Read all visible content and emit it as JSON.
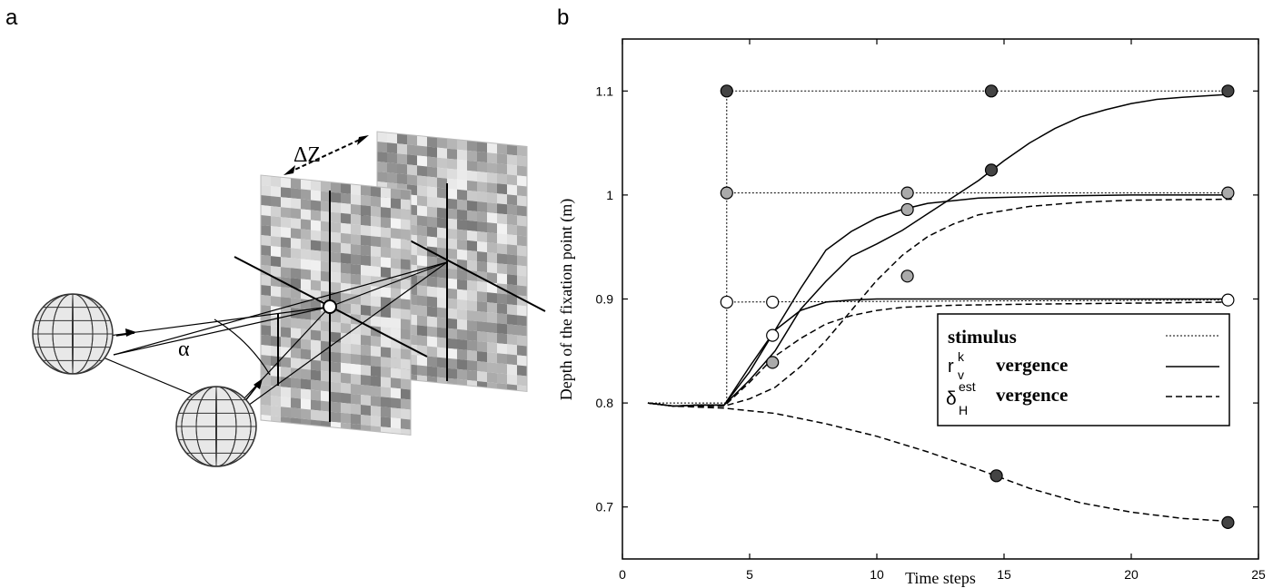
{
  "panels": {
    "a_label": "a",
    "b_label": "b"
  },
  "diagram": {
    "delta_z_label": "ΔZ",
    "alpha_label": "α",
    "colors": {
      "eye_fill": "#e8e8e8",
      "eye_stroke": "#333333",
      "line": "#000000"
    }
  },
  "chart_data": {
    "type": "line",
    "xlabel": "Time steps",
    "ylabel": "Depth of the fixation point (m)",
    "xlim": [
      0,
      25
    ],
    "ylim": [
      0.65,
      1.15
    ],
    "xticks": [
      "0",
      "5",
      "10",
      "15",
      "20",
      "25"
    ],
    "yticks": [
      "0.7",
      "0.8",
      "0.9",
      "1",
      "1.1"
    ],
    "grid": false,
    "legend_position": "right",
    "legend": [
      {
        "symbol": "",
        "label": "stimulus",
        "style": "dotted"
      },
      {
        "symbol": "r",
        "sup": "k",
        "sub": "v",
        "label": "vergence",
        "style": "solid"
      },
      {
        "symbol": "δ",
        "sup": "est",
        "sub": "H",
        "label": "vergence",
        "style": "dashed"
      }
    ],
    "series": [
      {
        "style": "dotted",
        "points": [
          [
            1,
            0.8
          ],
          [
            4.1,
            0.8
          ],
          [
            4.1,
            1.1
          ],
          [
            23.8,
            1.1
          ]
        ]
      },
      {
        "style": "dotted",
        "points": [
          [
            4.1,
            1.002
          ],
          [
            23.8,
            1.002
          ]
        ]
      },
      {
        "style": "dotted",
        "points": [
          [
            4.1,
            0.897
          ],
          [
            23.8,
            0.899
          ]
        ]
      },
      {
        "style": "solid",
        "points": [
          [
            1,
            0.8
          ],
          [
            2,
            0.797
          ],
          [
            3,
            0.798
          ],
          [
            4,
            0.798
          ],
          [
            5,
            0.83
          ],
          [
            6,
            0.87
          ],
          [
            7,
            0.91
          ],
          [
            8,
            0.947
          ],
          [
            9,
            0.965
          ],
          [
            10,
            0.978
          ],
          [
            11,
            0.986
          ],
          [
            12,
            0.992
          ],
          [
            14,
            0.997
          ],
          [
            17,
            0.999
          ],
          [
            20,
            1.0
          ],
          [
            24,
            1.0
          ]
        ]
      },
      {
        "style": "solid",
        "points": [
          [
            1,
            0.8
          ],
          [
            2,
            0.797
          ],
          [
            3,
            0.798
          ],
          [
            4,
            0.798
          ],
          [
            5,
            0.822
          ],
          [
            6,
            0.85
          ],
          [
            7,
            0.89
          ],
          [
            8,
            0.917
          ],
          [
            9,
            0.941
          ],
          [
            10,
            0.953
          ],
          [
            11,
            0.966
          ],
          [
            12,
            0.982
          ],
          [
            13,
            0.998
          ],
          [
            14,
            1.014
          ],
          [
            15,
            1.033
          ],
          [
            16,
            1.05
          ],
          [
            17,
            1.064
          ],
          [
            18,
            1.075
          ],
          [
            19,
            1.082
          ],
          [
            20,
            1.088
          ],
          [
            21,
            1.092
          ],
          [
            22,
            1.094
          ],
          [
            24,
            1.097
          ]
        ]
      },
      {
        "style": "solid",
        "points": [
          [
            1,
            0.8
          ],
          [
            2,
            0.797
          ],
          [
            3,
            0.798
          ],
          [
            4,
            0.798
          ],
          [
            5,
            0.835
          ],
          [
            6,
            0.87
          ],
          [
            7,
            0.889
          ],
          [
            8,
            0.897
          ],
          [
            9,
            0.899
          ],
          [
            10,
            0.9
          ],
          [
            24,
            0.9
          ]
        ]
      },
      {
        "style": "dashed",
        "points": [
          [
            1,
            0.8
          ],
          [
            2,
            0.797
          ],
          [
            3,
            0.797
          ],
          [
            4,
            0.797
          ],
          [
            5,
            0.804
          ],
          [
            6,
            0.815
          ],
          [
            7,
            0.835
          ],
          [
            8,
            0.86
          ],
          [
            9,
            0.889
          ],
          [
            10,
            0.918
          ],
          [
            11,
            0.942
          ],
          [
            12,
            0.96
          ],
          [
            13,
            0.972
          ],
          [
            14,
            0.981
          ],
          [
            16,
            0.989
          ],
          [
            18,
            0.993
          ],
          [
            20,
            0.995
          ],
          [
            24,
            0.996
          ]
        ]
      },
      {
        "style": "dashed",
        "points": [
          [
            1,
            0.8
          ],
          [
            2,
            0.797
          ],
          [
            3,
            0.797
          ],
          [
            4,
            0.797
          ],
          [
            5,
            0.82
          ],
          [
            6,
            0.845
          ],
          [
            7,
            0.862
          ],
          [
            8,
            0.876
          ],
          [
            9,
            0.884
          ],
          [
            10,
            0.889
          ],
          [
            11,
            0.892
          ],
          [
            13,
            0.894
          ],
          [
            16,
            0.895
          ],
          [
            20,
            0.896
          ],
          [
            24,
            0.897
          ]
        ]
      },
      {
        "style": "dashed",
        "points": [
          [
            1,
            0.8
          ],
          [
            2,
            0.797
          ],
          [
            3,
            0.796
          ],
          [
            4,
            0.795
          ],
          [
            6,
            0.79
          ],
          [
            8,
            0.78
          ],
          [
            10,
            0.768
          ],
          [
            12,
            0.753
          ],
          [
            14,
            0.736
          ],
          [
            16,
            0.718
          ],
          [
            18,
            0.704
          ],
          [
            20,
            0.695
          ],
          [
            22,
            0.689
          ],
          [
            24,
            0.686
          ]
        ]
      }
    ],
    "markers": [
      {
        "x": 4.1,
        "y": 1.1,
        "color": "#444444"
      },
      {
        "x": 14.5,
        "y": 1.1,
        "color": "#444444"
      },
      {
        "x": 23.8,
        "y": 1.1,
        "color": "#444444"
      },
      {
        "x": 14.5,
        "y": 1.024,
        "color": "#444444"
      },
      {
        "x": 14.7,
        "y": 0.73,
        "color": "#444444"
      },
      {
        "x": 23.8,
        "y": 0.685,
        "color": "#444444"
      },
      {
        "x": 4.1,
        "y": 1.002,
        "color": "#aaaaaa"
      },
      {
        "x": 11.2,
        "y": 1.002,
        "color": "#aaaaaa"
      },
      {
        "x": 23.8,
        "y": 1.002,
        "color": "#aaaaaa"
      },
      {
        "x": 11.2,
        "y": 0.986,
        "color": "#aaaaaa"
      },
      {
        "x": 11.2,
        "y": 0.922,
        "color": "#aaaaaa"
      },
      {
        "x": 5.9,
        "y": 0.839,
        "color": "#aaaaaa"
      },
      {
        "x": 4.1,
        "y": 0.897,
        "color": "#ffffff"
      },
      {
        "x": 5.9,
        "y": 0.897,
        "color": "#ffffff"
      },
      {
        "x": 5.9,
        "y": 0.865,
        "color": "#ffffff"
      },
      {
        "x": 23.8,
        "y": 0.899,
        "color": "#ffffff"
      }
    ]
  }
}
